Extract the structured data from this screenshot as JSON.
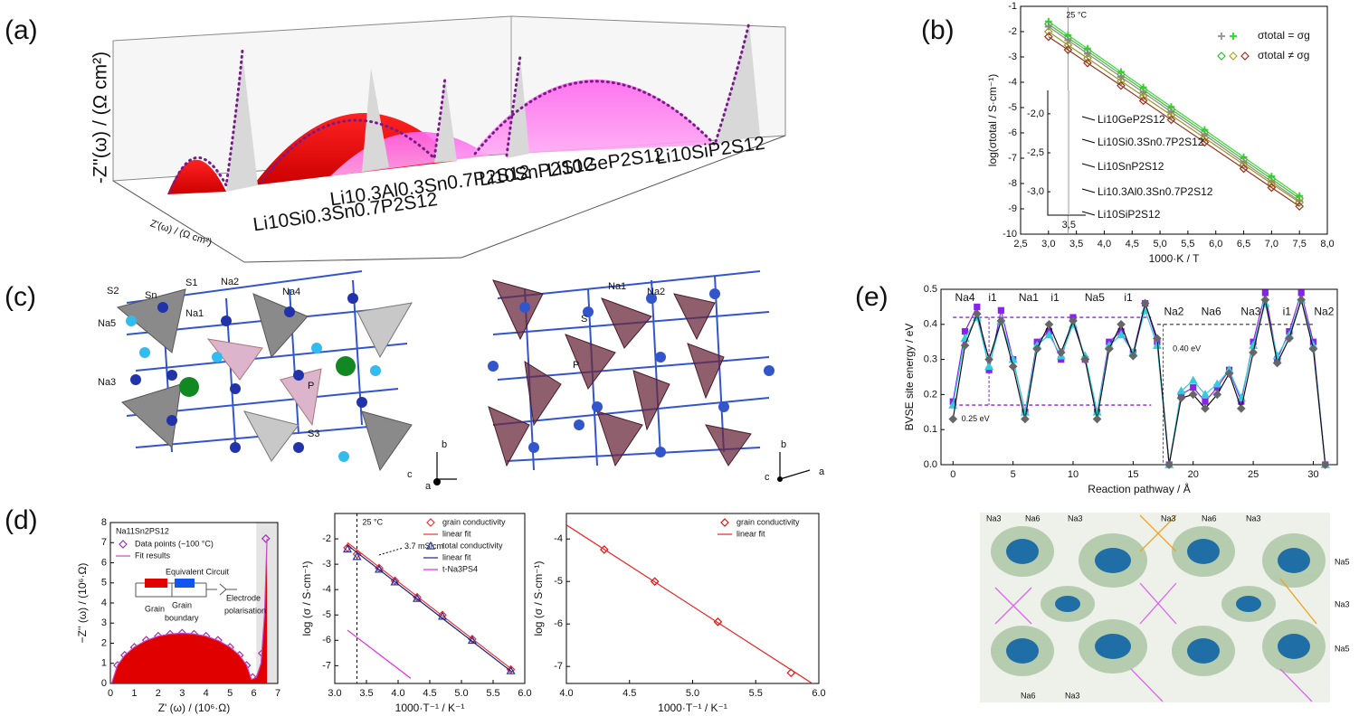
{
  "panels": {
    "labels": [
      "(a)",
      "(b)",
      "(c)",
      "(d)",
      "(e)"
    ]
  },
  "panel_a": {
    "y_label": "-Z''(ω) / (Ω cm²)",
    "x_label": "Z'(ω) / (Ω cm²)",
    "samples": [
      "Li10Si0.3Sn0.7P2S12",
      "Li10.3Al0.3Sn0.7P2S12",
      "Li10SnP2S12",
      "Li10GeP2S12",
      "Li10SiP2S12"
    ]
  },
  "panel_c": {
    "left_labels": [
      "S2",
      "Sn",
      "S1",
      "Na2",
      "Na4",
      "Na1",
      "Na5",
      "Na3",
      "P",
      "S3",
      "b",
      "a",
      "c"
    ],
    "right_labels": [
      "Na1",
      "Na2",
      "S",
      "P",
      "b",
      "c",
      "a"
    ]
  },
  "panel_e_map": {
    "labels": [
      "Na3",
      "Na6",
      "Na3",
      "Na3",
      "Na6",
      "Na3",
      "Na5",
      "Na3",
      "Na5",
      "Na6",
      "Na3"
    ]
  },
  "chart_data": [
    {
      "type": "scatter",
      "xlim": [
        2.5,
        8.0
      ],
      "ylim": [
        -10,
        -1
      ],
      "x_label": "1000·K / T",
      "y_label": "log(σtotal / S·cm⁻¹)",
      "xticks": [
        {
          "value": 2.5,
          "label": "2,5"
        },
        {
          "value": 3.0,
          "label": "3,0"
        },
        {
          "value": 3.5,
          "label": "3,5"
        },
        {
          "value": 4.0,
          "label": "4,0"
        },
        {
          "value": 4.5,
          "label": "4,5"
        },
        {
          "value": 5.0,
          "label": "5,0"
        },
        {
          "value": 5.5,
          "label": "5,5"
        },
        {
          "value": 6.0,
          "label": "6,0"
        },
        {
          "value": 6.5,
          "label": "6,5"
        },
        {
          "value": 7.0,
          "label": "7,0"
        },
        {
          "value": 7.5,
          "label": "7,5"
        },
        {
          "value": 8.0,
          "label": "8,0"
        }
      ],
      "yticks": [
        -1,
        -2,
        -3,
        -4,
        -5,
        -6,
        -7,
        -8,
        -9,
        -10
      ],
      "vline": {
        "x": 3.35,
        "label": "25 °C"
      },
      "series": [
        {
          "name": "Li10GeP2S12",
          "color": "#33dd33",
          "marker": "cross",
          "line": true,
          "x": [
            3.0,
            3.35,
            3.7,
            4.3,
            4.7,
            5.2,
            5.8,
            6.5,
            7.0,
            7.5
          ],
          "values": [
            -1.6,
            -2.14,
            -2.67,
            -3.59,
            -4.2,
            -4.97,
            -5.88,
            -6.96,
            -7.72,
            -8.49
          ]
        },
        {
          "name": "Li10Si0.3Sn0.7P2S12",
          "color": "#44bb33",
          "marker": "diamond",
          "line": true,
          "x": [
            3.0,
            3.35,
            3.7,
            4.3,
            4.7,
            5.2,
            5.8,
            6.5,
            7.0,
            7.5
          ],
          "values": [
            -1.7,
            -2.24,
            -2.77,
            -3.69,
            -4.3,
            -5.07,
            -5.98,
            -7.06,
            -7.82,
            -8.59
          ]
        },
        {
          "name": "Li10SnP2S12",
          "color": "#888888",
          "marker": "cross",
          "line": true,
          "x": [
            3.0,
            3.35,
            3.7,
            4.3,
            4.7,
            5.2,
            5.8,
            6.5,
            7.0,
            7.5
          ],
          "values": [
            -1.8,
            -2.34,
            -2.87,
            -3.79,
            -4.4,
            -5.17,
            -6.08,
            -7.16,
            -7.92,
            -8.69
          ]
        },
        {
          "name": "Li10.3Al0.3Sn0.7P2S12",
          "color": "#999922",
          "marker": "diamond",
          "line": true,
          "x": [
            3.0,
            3.35,
            3.7,
            4.3,
            4.7,
            5.2,
            5.8,
            6.5,
            7.0,
            7.5
          ],
          "values": [
            -2.0,
            -2.53,
            -3.05,
            -3.95,
            -4.55,
            -5.3,
            -6.2,
            -7.25,
            -8.0,
            -8.75
          ]
        },
        {
          "name": "Li10SiP2S12",
          "color": "#993322",
          "marker": "diamond",
          "line": true,
          "x": [
            3.0,
            3.35,
            3.7,
            4.3,
            4.7,
            5.2,
            5.8,
            6.5,
            7.0,
            7.5
          ],
          "values": [
            -2.2,
            -2.72,
            -3.24,
            -4.13,
            -4.73,
            -5.48,
            -6.37,
            -7.41,
            -8.16,
            -8.9
          ]
        }
      ],
      "legend_entries": [
        {
          "label": "σtotal = σg",
          "marker": "cross",
          "colors": [
            "#999999",
            "#33dd33"
          ]
        },
        {
          "label": "σtotal ≠ σg",
          "marker": "diamond",
          "colors": [
            "#33bb33",
            "#aaaa22",
            "#993322"
          ]
        }
      ],
      "inset": {
        "xlim": [
          3.0,
          3.9
        ],
        "ylim": [
          -3.3,
          -1.7
        ],
        "xticks": [
          {
            "value": 3.5,
            "label": "3,5"
          }
        ],
        "yticks": [
          {
            "value": -2.0,
            "label": "-2,0"
          },
          {
            "value": -2.5,
            "label": "-2,5"
          },
          {
            "value": -3.0,
            "label": "-3,0"
          }
        ]
      }
    },
    {
      "type": "scatter",
      "xlim": [
        0,
        7
      ],
      "ylim": [
        0,
        8
      ],
      "x_label": "Z' (ω) / (10⁶·Ω)",
      "y_label": "−Z'' (ω) / (10⁶·Ω)",
      "xticks": [
        0,
        1,
        2,
        3,
        4,
        5,
        6,
        7
      ],
      "yticks": [
        0,
        1,
        2,
        3,
        4,
        5,
        6,
        7,
        8
      ],
      "legend_title": "Na11Sn2PS12",
      "legend": "upper left",
      "series": [
        {
          "name": "Data points  (−100 °C)",
          "color": "#9933aa",
          "marker": "diamond",
          "line": false,
          "x": [
            0.3,
            0.6,
            1.0,
            1.5,
            2.0,
            2.5,
            3.0,
            3.5,
            4.0,
            4.5,
            5.0,
            5.4,
            5.7,
            5.95,
            6.2,
            6.35,
            6.5
          ],
          "values": [
            0.9,
            1.4,
            1.8,
            2.15,
            2.35,
            2.45,
            2.5,
            2.45,
            2.35,
            2.15,
            1.8,
            1.4,
            0.9,
            0.3,
            0.3,
            1.5,
            7.2
          ]
        },
        {
          "name": "Fit results",
          "color": "#cc44cc",
          "marker": null,
          "line": true,
          "fill": "#e00000",
          "x": [
            0.05,
            0.3,
            0.6,
            1.0,
            1.5,
            2.0,
            2.5,
            3.0,
            3.5,
            4.0,
            4.5,
            5.0,
            5.4,
            5.7,
            5.9,
            6.1,
            6.3,
            6.45,
            6.55
          ],
          "values": [
            0,
            0.91,
            1.4,
            1.81,
            2.14,
            2.35,
            2.46,
            2.5,
            2.46,
            2.35,
            2.14,
            1.81,
            1.4,
            0.91,
            0.2,
            0.3,
            1.0,
            3.5,
            7.2
          ]
        }
      ],
      "circuit": {
        "title": "Equivalent Circuit",
        "labels": [
          "Grain",
          "Grain",
          "boundary",
          "Electrode",
          "polarisation"
        ]
      }
    },
    {
      "type": "scatter",
      "xlim": [
        3.0,
        6.0
      ],
      "ylim": [
        -7.7,
        -1.0
      ],
      "x_label": "1000·T⁻¹ / K⁻¹",
      "y_label": "log (σ / S·cm⁻¹)",
      "xticks": [
        {
          "value": 3.0,
          "label": "3.0"
        },
        {
          "value": 3.5,
          "label": "3.5"
        },
        {
          "value": 4.0,
          "label": "4.0"
        },
        {
          "value": 4.5,
          "label": "4.5"
        },
        {
          "value": 5.0,
          "label": "5.0"
        },
        {
          "value": 5.5,
          "label": "5.5"
        },
        {
          "value": 6.0,
          "label": "6.0"
        }
      ],
      "yticks": [
        -2,
        -3,
        -4,
        -5,
        -6,
        -7
      ],
      "legend": "upper right",
      "vline": {
        "x": 3.35,
        "label": "25 °C",
        "dashed": true
      },
      "annotations": [
        {
          "text": "3.7 mS/cm",
          "x": 4.1,
          "y": -2.3
        }
      ],
      "series": [
        {
          "name": "grain conductivity",
          "color": "#ee3333",
          "marker": "diamond",
          "line": false,
          "x": [
            3.2,
            3.35,
            3.7,
            3.95,
            4.3,
            4.7,
            5.17,
            5.78
          ],
          "values": [
            -2.35,
            -2.6,
            -3.15,
            -3.65,
            -4.3,
            -5.0,
            -5.95,
            -7.15
          ]
        },
        {
          "name": "linear fit",
          "color": "#ee3333",
          "marker": null,
          "line": true,
          "x": [
            3.2,
            5.8
          ],
          "values": [
            -2.15,
            -7.15
          ]
        },
        {
          "name": "total conductivity",
          "color": "#2233aa",
          "marker": "triangle",
          "line": false,
          "x": [
            3.2,
            3.35,
            3.7,
            3.95,
            4.3,
            4.7,
            5.17,
            5.78
          ],
          "values": [
            -2.4,
            -2.7,
            -3.2,
            -3.7,
            -4.35,
            -5.05,
            -6.0,
            -7.2
          ]
        },
        {
          "name": "linear fit",
          "color": "#1a237e",
          "marker": null,
          "line": true,
          "x": [
            3.2,
            5.8
          ],
          "values": [
            -2.25,
            -7.25
          ]
        },
        {
          "name": "t-Na3PS4",
          "color": "#ee22ee",
          "marker": null,
          "line": true,
          "x": [
            3.2,
            4.2
          ],
          "values": [
            -5.6,
            -7.5
          ]
        }
      ]
    },
    {
      "type": "scatter",
      "xlim": [
        4.0,
        6.0
      ],
      "ylim": [
        -7.4,
        -3.4
      ],
      "x_label": "1000·T⁻¹ / K⁻¹",
      "y_label": "log (σ / S·cm⁻¹)",
      "xticks": [
        {
          "value": 4.0,
          "label": "4.0"
        },
        {
          "value": 4.5,
          "label": "4.5"
        },
        {
          "value": 5.0,
          "label": "5.0"
        },
        {
          "value": 5.5,
          "label": "5.5"
        },
        {
          "value": 6.0,
          "label": "6.0"
        }
      ],
      "yticks": [
        -4,
        -5,
        -6,
        -7
      ],
      "legend": "upper right",
      "series": [
        {
          "name": "grain conductivity",
          "color": "#dd1111",
          "marker": "diamond",
          "line": false,
          "x": [
            4.3,
            4.7,
            5.2,
            5.78
          ],
          "values": [
            -4.25,
            -5.0,
            -5.95,
            -7.15
          ]
        },
        {
          "name": "linear fit",
          "color": "#ee2222",
          "marker": null,
          "line": true,
          "x": [
            4.0,
            6.0
          ],
          "values": [
            -3.67,
            -7.5
          ]
        }
      ]
    },
    {
      "type": "line",
      "xlim": [
        -1,
        32
      ],
      "ylim": [
        0,
        0.5
      ],
      "filled_markers": true,
      "x_label": "Reaction pathway / Å",
      "y_label": "BVSE site energy / eV",
      "xticks": [
        0,
        5,
        10,
        15,
        20,
        25,
        30
      ],
      "yticks": [
        {
          "value": 0,
          "label": "0.0"
        },
        0.1,
        0.2,
        0.3,
        0.4,
        0.5
      ],
      "series": [
        {
          "color": "#8822ee",
          "marker": "square",
          "line": true,
          "x": [
            0,
            1,
            2,
            3,
            4,
            5,
            6,
            7,
            8,
            9,
            10,
            11,
            12,
            13,
            14,
            15,
            16,
            17,
            18,
            19,
            20,
            21,
            22,
            23,
            24,
            25,
            26,
            27,
            28,
            29,
            30,
            31
          ],
          "values": [
            0.18,
            0.38,
            0.45,
            0.27,
            0.44,
            0.3,
            0.15,
            0.35,
            0.38,
            0.3,
            0.42,
            0.3,
            0.15,
            0.35,
            0.38,
            0.32,
            0.46,
            0.35,
            0.0,
            0.2,
            0.22,
            0.18,
            0.22,
            0.27,
            0.18,
            0.35,
            0.49,
            0.3,
            0.38,
            0.49,
            0.35,
            0.0
          ]
        },
        {
          "color": "#33ccdd",
          "marker": "triangle",
          "line": true,
          "x": [
            0,
            1,
            2,
            3,
            4,
            5,
            6,
            7,
            8,
            9,
            10,
            11,
            12,
            13,
            14,
            15,
            16,
            17,
            18,
            19,
            20,
            21,
            22,
            23,
            24,
            25,
            26,
            27,
            28,
            29,
            30,
            31
          ],
          "values": [
            0.17,
            0.36,
            0.42,
            0.28,
            0.41,
            0.3,
            0.15,
            0.34,
            0.37,
            0.31,
            0.4,
            0.31,
            0.15,
            0.34,
            0.37,
            0.32,
            0.44,
            0.34,
            0.0,
            0.21,
            0.24,
            0.2,
            0.23,
            0.27,
            0.19,
            0.34,
            0.46,
            0.31,
            0.37,
            0.47,
            0.34,
            0.0
          ]
        },
        {
          "color": "#666666",
          "line_color": "#111111",
          "marker": "diamond",
          "line": true,
          "x": [
            0,
            1,
            2,
            3,
            4,
            5,
            6,
            7,
            8,
            9,
            10,
            11,
            12,
            13,
            14,
            15,
            16,
            17,
            18,
            19,
            20,
            21,
            22,
            23,
            24,
            25,
            26,
            27,
            28,
            29,
            30,
            31
          ],
          "values": [
            0.13,
            0.34,
            0.43,
            0.3,
            0.41,
            0.28,
            0.13,
            0.33,
            0.4,
            0.32,
            0.41,
            0.3,
            0.13,
            0.33,
            0.4,
            0.31,
            0.46,
            0.36,
            0.0,
            0.19,
            0.2,
            0.16,
            0.2,
            0.26,
            0.16,
            0.32,
            0.47,
            0.29,
            0.36,
            0.47,
            0.33,
            0.0
          ]
        }
      ],
      "hlines": [
        {
          "value": 0.42,
          "from": 0,
          "to": 16.5,
          "color": "#8822ee"
        },
        {
          "value": 0.17,
          "from": 0,
          "to": 16.5,
          "color": "#8822ee"
        },
        {
          "value": 0.4,
          "from": 17,
          "to": 30,
          "color": "#555555"
        }
      ],
      "annotations": [
        {
          "text": "0.40 eV",
          "x": 18.3,
          "y": 0.33,
          "color": "#444444"
        },
        {
          "text": "0.25 eV",
          "x": 0.7,
          "y": 0.13,
          "color": "#8822ee"
        }
      ],
      "site_labels": [
        {
          "text": "Na4",
          "x": 1.0,
          "y": 0.475,
          "color": "#8822ee"
        },
        {
          "text": "i1",
          "x": 3.3,
          "y": 0.475,
          "color": "#8822ee"
        },
        {
          "text": "Na1",
          "x": 6.3,
          "y": 0.475,
          "color": "#8822ee"
        },
        {
          "text": "i1",
          "x": 8.5,
          "y": 0.475,
          "color": "#8822ee"
        },
        {
          "text": "Na5",
          "x": 11.8,
          "y": 0.475,
          "color": "#8822ee"
        },
        {
          "text": "i1",
          "x": 14.6,
          "y": 0.475,
          "color": "#8822ee"
        },
        {
          "text": "Na2",
          "x": 18.4,
          "y": 0.435,
          "color": "#333333"
        },
        {
          "text": "Na6",
          "x": 21.5,
          "y": 0.435,
          "color": "#333333"
        },
        {
          "text": "Na3",
          "x": 24.8,
          "y": 0.435,
          "color": "#333333"
        },
        {
          "text": "i1",
          "x": 27.8,
          "y": 0.435,
          "color": "#333333"
        },
        {
          "text": "Na2",
          "x": 30.9,
          "y": 0.435,
          "color": "#333333"
        }
      ]
    }
  ]
}
